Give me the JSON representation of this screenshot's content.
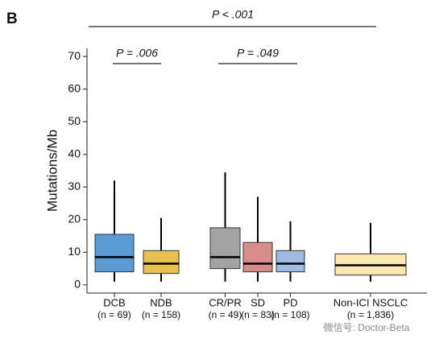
{
  "chart_data": {
    "type": "box",
    "panel_label": "B",
    "y_label": "Mutations/Mb",
    "ylim": [
      -2.5,
      72.5
    ],
    "yticks": [
      0,
      10,
      20,
      30,
      40,
      50,
      60,
      70
    ],
    "boxes": [
      {
        "name": "DCB",
        "n_label": "(n = 69)",
        "color": "#5b9bd5",
        "whisker_low": 1,
        "q1": 4,
        "median": 8.5,
        "q3": 15.5,
        "whisker_high": 32
      },
      {
        "name": "NDB",
        "n_label": "(n = 158)",
        "color": "#e6c14f",
        "whisker_low": 1,
        "q1": 3.5,
        "median": 6.5,
        "q3": 10.5,
        "whisker_high": 20.5
      },
      {
        "name": "CR/PR",
        "n_label": "(n = 49)",
        "color": "#a3a3a3",
        "whisker_low": 1,
        "q1": 5,
        "median": 8.5,
        "q3": 17.5,
        "whisker_high": 34.5
      },
      {
        "name": "SD",
        "n_label": "(n = 83)",
        "color": "#d98c8c",
        "whisker_low": 1,
        "q1": 4,
        "median": 6.5,
        "q3": 13,
        "whisker_high": 27
      },
      {
        "name": "PD",
        "n_label": "(n = 108)",
        "color": "#9fbbe3",
        "whisker_low": 1,
        "q1": 4,
        "median": 6.5,
        "q3": 10.5,
        "whisker_high": 19.5
      },
      {
        "name": "Non-ICI NSCLC",
        "n_label": "(n = 1,836)",
        "color": "#fbe7b0",
        "whisker_low": 1,
        "q1": 3,
        "median": 6,
        "q3": 9.5,
        "whisker_high": 19
      }
    ],
    "annotations": [
      "P < .001",
      "P = .006",
      "P = .049"
    ],
    "watermark": "微信号: Doctor-Beta"
  }
}
